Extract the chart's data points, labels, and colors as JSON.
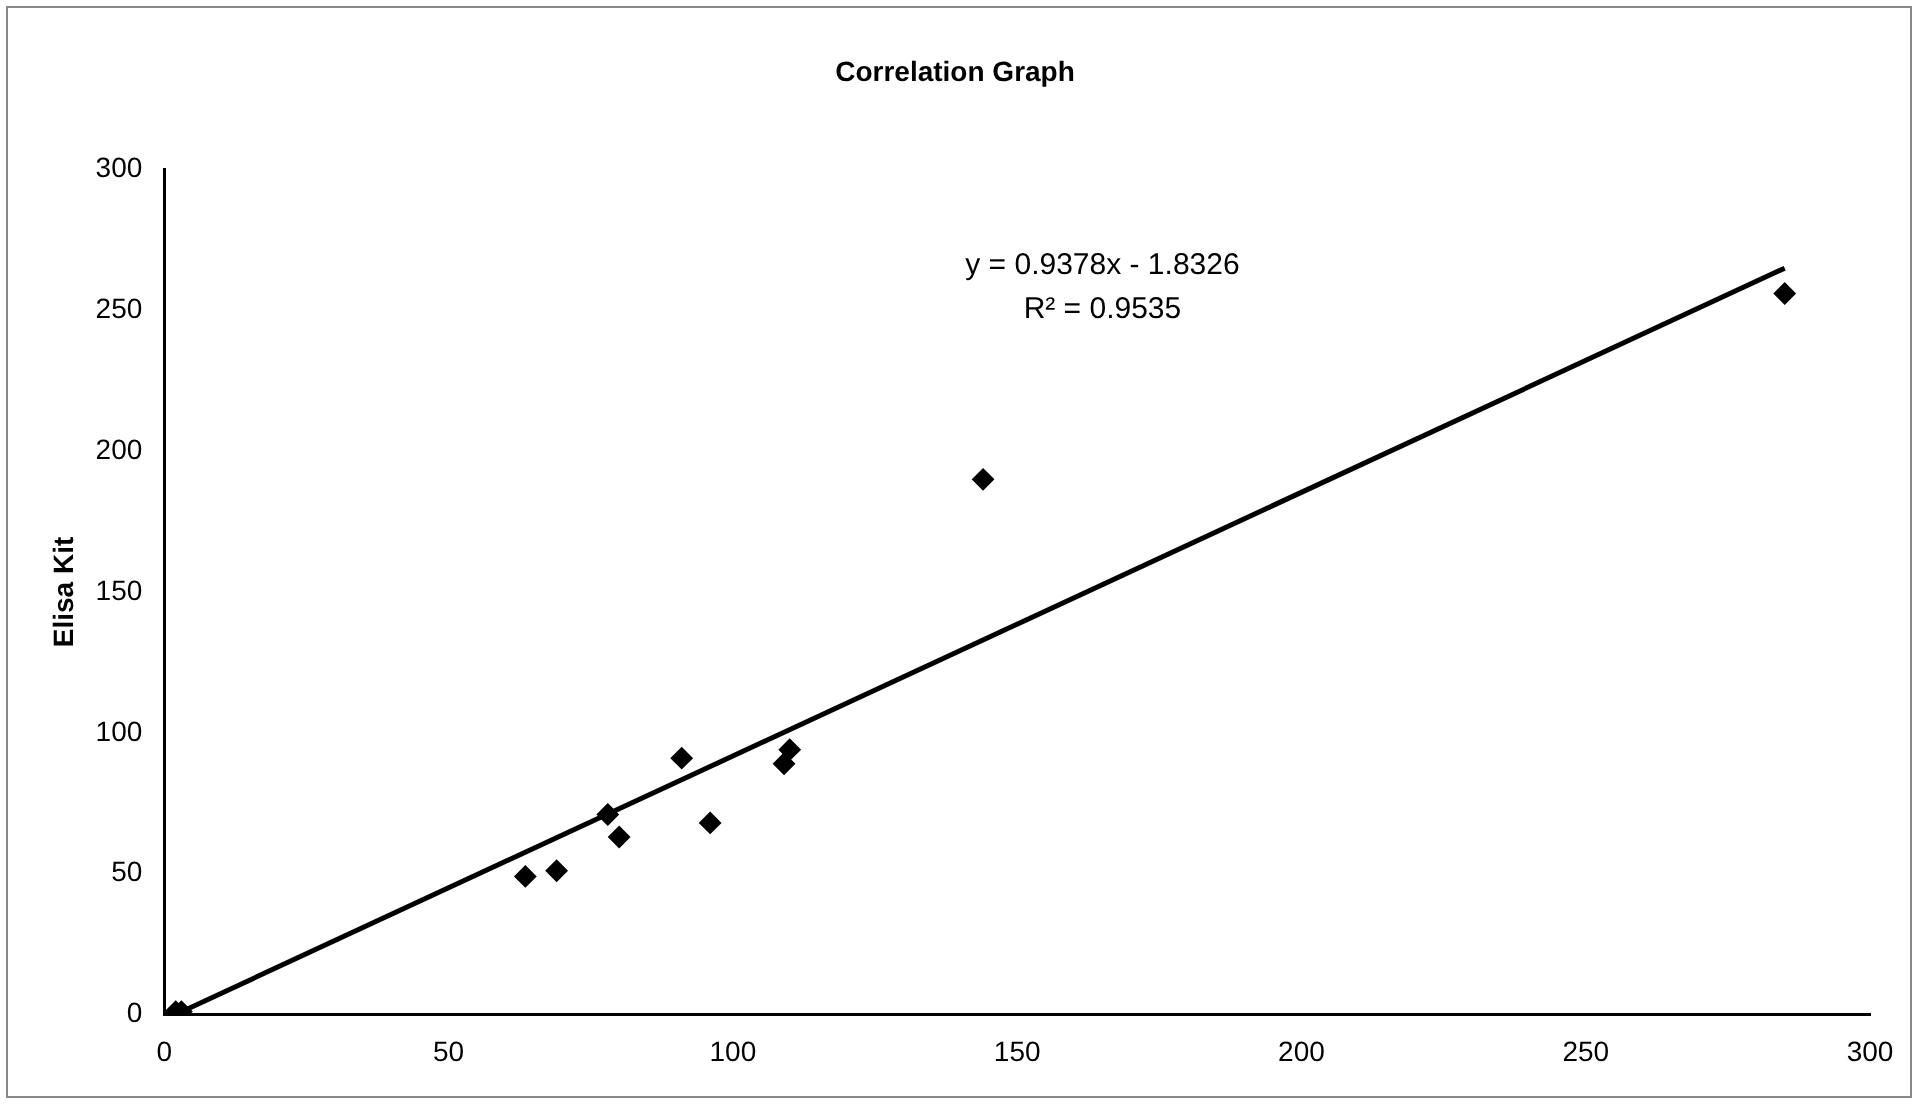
{
  "chart_data": {
    "type": "scatter",
    "title": "Correlation Graph",
    "ylabel": "Elisa Kit",
    "xlim": [
      0,
      300
    ],
    "xticks": [
      0,
      50,
      100,
      150,
      200,
      250,
      300
    ],
    "ylim": [
      0,
      300
    ],
    "yticks": [
      0,
      50,
      100,
      150,
      200,
      250,
      300
    ],
    "grid": false,
    "legend": false,
    "series": [
      {
        "marker": "diamond",
        "color": "#000000",
        "x": [
          2,
          3,
          63.5,
          69,
          78,
          80,
          91,
          96,
          109,
          110,
          144,
          285
        ],
        "values": [
          1,
          1,
          49,
          51,
          71,
          63,
          91,
          68,
          89,
          94,
          190,
          256
        ]
      },
      {
        "type": "line",
        "marker": "none",
        "color": "#000000",
        "x": [
          2,
          285
        ],
        "values": [
          0,
          265
        ]
      }
    ],
    "annotations": [
      "y = 0.9378x - 1.8326",
      "R² = 0.9535"
    ]
  }
}
